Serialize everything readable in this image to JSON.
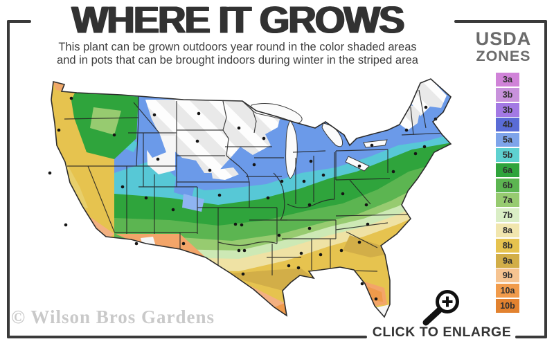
{
  "header": {
    "title": "WHERE IT GROWS",
    "subtitle_line1": "This plant can be grown outdoors year round in the color shaded areas",
    "subtitle_line2": "and in pots that can be brought indoors during winter in the striped area"
  },
  "legend": {
    "title_line1": "USDA",
    "title_line2": "ZONES",
    "zones": [
      {
        "label": "3a",
        "color": "#d083d8"
      },
      {
        "label": "3b",
        "color": "#c892dc"
      },
      {
        "label": "3b",
        "color": "#a379e4"
      },
      {
        "label": "4b",
        "color": "#5a6cd6"
      },
      {
        "label": "5a",
        "color": "#7ea4ea"
      },
      {
        "label": "5b",
        "color": "#5ed1d0"
      },
      {
        "label": "6a",
        "color": "#2fa43c"
      },
      {
        "label": "6b",
        "color": "#5cb551"
      },
      {
        "label": "7a",
        "color": "#97cb70"
      },
      {
        "label": "7b",
        "color": "#daeec6"
      },
      {
        "label": "8a",
        "color": "#f1e6ae"
      },
      {
        "label": "8b",
        "color": "#e6c34f"
      },
      {
        "label": "9a",
        "color": "#d2ae48"
      },
      {
        "label": "9b",
        "color": "#f6c491"
      },
      {
        "label": "10a",
        "color": "#f19b4b"
      },
      {
        "label": "10b",
        "color": "#e2822f"
      }
    ]
  },
  "map": {
    "description": "USDA plant hardiness zones map of the continental United States with striped non-hardy northern area and city dots",
    "colors": {
      "stripe_base": "#e9e9e9",
      "stripe_highlight": "#ffffff",
      "blue": "#6b9ae9",
      "light_blue": "#8fb4f2",
      "cyan": "#57c8d6",
      "dark_green": "#2fa43c",
      "mid_green": "#5cb551",
      "light_green": "#97cb70",
      "pale_green": "#cde9b5",
      "pale_yellow": "#efe2a4",
      "gold": "#e6c34f",
      "valley_gold": "#e8cf6b",
      "mustard": "#d2ae48",
      "peach": "#f3b081",
      "salmon": "#f3a569",
      "coast_orange": "#f0a869",
      "orange": "#ef9a4b",
      "deep_orange": "#e2822f",
      "lake_white": "#fbfbfb",
      "tip_white": "#f6f6f6",
      "dot": "#151515"
    },
    "dots": [
      [
        88,
        42
      ],
      [
        70,
        88
      ],
      [
        57,
        150
      ],
      [
        80,
        225
      ],
      [
        150,
        95
      ],
      [
        162,
        170
      ],
      [
        196,
        186
      ],
      [
        182,
        252
      ],
      [
        250,
        252
      ],
      [
        235,
        203
      ],
      [
        213,
        130
      ],
      [
        208,
        66
      ],
      [
        272,
        64
      ],
      [
        270,
        104
      ],
      [
        288,
        146
      ],
      [
        302,
        182
      ],
      [
        325,
        224
      ],
      [
        334,
        225
      ],
      [
        330,
        262
      ],
      [
        338,
        262
      ],
      [
        336,
        296
      ],
      [
        330,
        85
      ],
      [
        352,
        138
      ],
      [
        372,
        186
      ],
      [
        388,
        240
      ],
      [
        402,
        284
      ],
      [
        416,
        287
      ],
      [
        366,
        100
      ],
      [
        392,
        162
      ],
      [
        424,
        162
      ],
      [
        434,
        133
      ],
      [
        452,
        153
      ],
      [
        432,
        196
      ],
      [
        432,
        230
      ],
      [
        420,
        266
      ],
      [
        448,
        268
      ],
      [
        478,
        262
      ],
      [
        508,
        310
      ],
      [
        528,
        332
      ],
      [
        504,
        250
      ],
      [
        516,
        224
      ],
      [
        514,
        196
      ],
      [
        480,
        180
      ],
      [
        504,
        140
      ],
      [
        522,
        110
      ],
      [
        553,
        148
      ],
      [
        585,
        122
      ],
      [
        598,
        112
      ],
      [
        572,
        88
      ],
      [
        600,
        55
      ],
      [
        614,
        72
      ]
    ]
  },
  "footer": {
    "watermark": "© Wilson Bros Gardens",
    "enlarge_label": "CLICK TO ENLARGE"
  }
}
